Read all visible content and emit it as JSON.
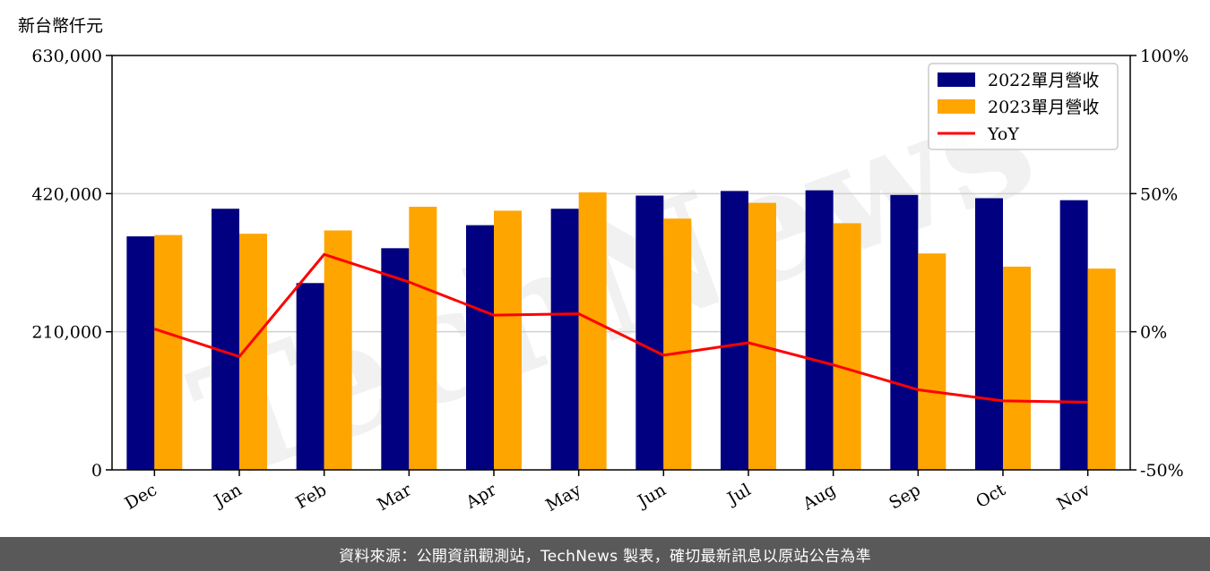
{
  "unit_label": "新台幣仟元",
  "footer_text": "資料來源：公開資訊觀測站，TechNews 製表，確切最新訊息以原站公告為準",
  "watermark_text": "TechNews",
  "chart_data": {
    "type": "bar",
    "categories": [
      "Dec",
      "Jan",
      "Feb",
      "Mar",
      "Apr",
      "May",
      "Jun",
      "Jul",
      "Aug",
      "Sep",
      "Oct",
      "Nov"
    ],
    "series": [
      {
        "name": "2022單月營收",
        "type": "bar",
        "axis": "left",
        "color": "#000080",
        "values": [
          355000,
          397000,
          284000,
          337000,
          372000,
          397000,
          417000,
          424000,
          425000,
          418000,
          413000,
          410000
        ]
      },
      {
        "name": "2023單月營收",
        "type": "bar",
        "axis": "left",
        "color": "#ffa500",
        "values": [
          357000,
          359000,
          364000,
          400000,
          394000,
          422000,
          382000,
          406000,
          375000,
          329000,
          309000,
          306000
        ]
      },
      {
        "name": "YoY",
        "type": "line",
        "axis": "right",
        "color": "#ff0000",
        "values": [
          0.01,
          -0.09,
          0.28,
          0.18,
          0.06,
          0.065,
          -0.085,
          -0.04,
          -0.12,
          -0.21,
          -0.25,
          -0.255
        ]
      }
    ],
    "ylim_left": [
      0,
      630000
    ],
    "yticks_left": [
      0,
      210000,
      420000,
      630000
    ],
    "ytick_labels_left": [
      "0",
      "210,000",
      "420,000",
      "630,000"
    ],
    "ylim_right": [
      -0.5,
      1.0
    ],
    "yticks_right": [
      -0.5,
      0,
      0.5,
      1.0
    ],
    "ytick_labels_right": [
      "-50%",
      "0%",
      "50%",
      "100%"
    ],
    "grid": "horizontal",
    "legend_position": "top-right"
  }
}
